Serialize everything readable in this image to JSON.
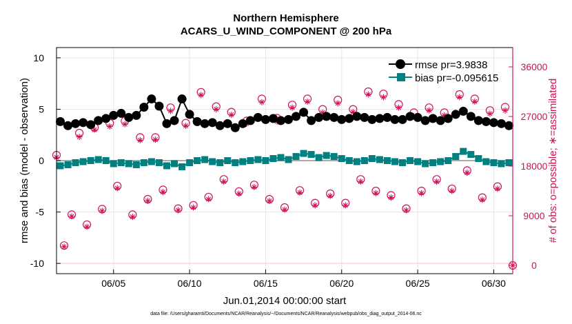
{
  "page": {
    "title_line1": "Northern Hemisphere",
    "title_line2": "ACARS_U_WIND_COMPONENT @ 200 hPa",
    "footer_note": "data file: /Users/gharamti/Documents/NCAR/Reanalysis/~/Documents/NCAR/Reanalysis/webpub/obs_diag_output_2014-06.nc"
  },
  "chart_data": {
    "type": "line",
    "title": "Northern Hemisphere ACARS_U_WIND_COMPONENT @ 200 hPa",
    "xlabel": "Jun.01,2014 00:00:00 start",
    "ylabel_left": "rmse and bias (model - observation)",
    "ylabel_right": "# of obs: o=possible; ∗=assimilated",
    "x_unit": "days since Jun.01,2014 00:00:00",
    "xlim": [
      0.25,
      30.25
    ],
    "ylim_left": [
      -11,
      11
    ],
    "ylim_right": [
      -1500,
      39500
    ],
    "x_ticks": [
      4,
      9,
      14,
      19,
      24,
      29
    ],
    "x_tick_labels": [
      "06/05",
      "06/10",
      "06/15",
      "06/20",
      "06/25",
      "06/30"
    ],
    "y_ticks_left": [
      -10,
      -5,
      0,
      5,
      10
    ],
    "y_ticks_right": [
      0,
      9000,
      18000,
      27000,
      36000
    ],
    "grid": true,
    "legend_placement": "top-right",
    "colors": {
      "rmse": "#000000",
      "bias": "#008080",
      "obs": "#d0105a",
      "zero_line": "#aaaaaa"
    },
    "series": [
      {
        "name": "rmse pr=3.9838",
        "axis": "left",
        "marker": "circle",
        "x": [
          0.5,
          1.0,
          1.5,
          2.0,
          2.5,
          3.0,
          3.5,
          4.0,
          4.5,
          5.0,
          5.5,
          6.0,
          6.5,
          7.0,
          7.5,
          8.0,
          8.5,
          9.0,
          9.5,
          10.0,
          10.5,
          11.0,
          11.5,
          12.0,
          12.5,
          13.0,
          13.5,
          14.0,
          14.5,
          15.0,
          15.5,
          16.0,
          16.5,
          17.0,
          17.5,
          18.0,
          18.5,
          19.0,
          19.5,
          20.0,
          20.5,
          21.0,
          21.5,
          22.0,
          22.5,
          23.0,
          23.5,
          24.0,
          24.5,
          25.0,
          25.5,
          26.0,
          26.5,
          27.0,
          27.5,
          28.0,
          28.5,
          29.0,
          29.5,
          30.0
        ],
        "values": [
          3.8,
          3.4,
          3.6,
          3.7,
          3.5,
          3.9,
          4.1,
          4.4,
          4.6,
          4.2,
          4.4,
          5.2,
          6.0,
          5.3,
          3.6,
          3.9,
          6.0,
          4.5,
          3.8,
          3.6,
          3.7,
          3.4,
          3.6,
          3.2,
          3.6,
          3.9,
          4.2,
          4.0,
          4.1,
          3.9,
          4.0,
          4.3,
          4.7,
          3.9,
          4.2,
          4.3,
          4.2,
          4.0,
          4.1,
          4.3,
          4.2,
          4.0,
          4.1,
          4.2,
          4.0,
          4.0,
          4.3,
          4.2,
          3.9,
          4.1,
          3.9,
          4.1,
          4.5,
          4.8,
          4.3,
          3.9,
          3.8,
          3.7,
          3.6,
          3.4
        ]
      },
      {
        "name": "bias pr=-0.095615",
        "axis": "left",
        "marker": "square",
        "x": [
          0.5,
          1.0,
          1.5,
          2.0,
          2.5,
          3.0,
          3.5,
          4.0,
          4.5,
          5.0,
          5.5,
          6.0,
          6.5,
          7.0,
          7.5,
          8.0,
          8.5,
          9.0,
          9.5,
          10.0,
          10.5,
          11.0,
          11.5,
          12.0,
          12.5,
          13.0,
          13.5,
          14.0,
          14.5,
          15.0,
          15.5,
          16.0,
          16.5,
          17.0,
          17.5,
          18.0,
          18.5,
          19.0,
          19.5,
          20.0,
          20.5,
          21.0,
          21.5,
          22.0,
          22.5,
          23.0,
          23.5,
          24.0,
          24.5,
          25.0,
          25.5,
          26.0,
          26.5,
          27.0,
          27.5,
          28.0,
          28.5,
          29.0,
          29.5,
          30.0
        ],
        "values": [
          -0.5,
          -0.4,
          -0.2,
          -0.1,
          0.0,
          0.1,
          0.0,
          -0.3,
          -0.2,
          -0.3,
          -0.4,
          -0.2,
          -0.1,
          -0.2,
          -0.5,
          -0.3,
          -0.6,
          -0.2,
          0.0,
          0.1,
          -0.1,
          -0.2,
          0.0,
          -0.2,
          -0.1,
          0.0,
          0.1,
          0.0,
          0.2,
          0.3,
          0.1,
          0.4,
          0.7,
          0.6,
          0.3,
          0.5,
          0.4,
          0.2,
          0.0,
          -0.1,
          0.0,
          0.2,
          0.1,
          0.0,
          -0.1,
          -0.2,
          0.0,
          -0.1,
          -0.3,
          -0.2,
          -0.1,
          0.0,
          0.4,
          0.9,
          0.6,
          0.2,
          -0.1,
          -0.2,
          -0.3,
          -0.2
        ]
      },
      {
        "name": "possible",
        "axis": "right",
        "marker": "circle-open",
        "x": [
          0.25,
          0.75,
          1.25,
          1.75,
          2.25,
          2.75,
          3.25,
          3.75,
          4.25,
          4.75,
          5.25,
          5.75,
          6.25,
          6.75,
          7.25,
          7.75,
          8.25,
          8.75,
          9.25,
          9.75,
          10.25,
          10.75,
          11.25,
          11.75,
          12.25,
          12.75,
          13.25,
          13.75,
          14.25,
          14.75,
          15.25,
          15.75,
          16.25,
          16.75,
          17.25,
          17.75,
          18.25,
          18.75,
          19.25,
          19.75,
          20.25,
          20.75,
          21.25,
          21.75,
          22.25,
          22.75,
          23.25,
          23.75,
          24.25,
          24.75,
          25.25,
          25.75,
          26.25,
          26.75,
          27.25,
          27.75,
          28.25,
          28.75,
          29.25,
          29.75,
          30.25
        ],
        "values": [
          20000,
          3600,
          9200,
          24000,
          7400,
          25000,
          10200,
          25800,
          14400,
          26200,
          9200,
          23200,
          12000,
          23200,
          13700,
          28600,
          10300,
          25800,
          10900,
          31400,
          12400,
          28800,
          15600,
          27800,
          13400,
          26200,
          14600,
          30200,
          12000,
          26700,
          10500,
          29100,
          13600,
          30200,
          11300,
          28300,
          13000,
          30000,
          11300,
          28300,
          15600,
          31500,
          13500,
          31100,
          12700,
          29200,
          10300,
          27700,
          13500,
          28600,
          15600,
          27700,
          13900,
          31000,
          17200,
          30200,
          12300,
          28100,
          14300,
          28700,
          0
        ]
      },
      {
        "name": "assimilated",
        "axis": "right",
        "marker": "asterisk",
        "x": [
          0.25,
          0.75,
          1.25,
          1.75,
          2.25,
          2.75,
          3.25,
          3.75,
          4.25,
          4.75,
          5.25,
          5.75,
          6.25,
          6.75,
          7.25,
          7.75,
          8.25,
          8.75,
          9.25,
          9.75,
          10.25,
          10.75,
          11.25,
          11.75,
          12.25,
          12.75,
          13.25,
          13.75,
          14.25,
          14.75,
          15.25,
          15.75,
          16.25,
          16.75,
          17.25,
          17.75,
          18.25,
          18.75,
          19.25,
          19.75,
          20.25,
          20.75,
          21.25,
          21.75,
          22.25,
          22.75,
          23.25,
          23.75,
          24.25,
          24.75,
          25.25,
          25.75,
          26.25,
          26.75,
          27.25,
          27.75,
          28.25,
          28.75,
          29.25,
          29.75,
          30.25
        ],
        "values": [
          19600,
          3400,
          8900,
          23300,
          7000,
          24600,
          9900,
          25200,
          14000,
          25600,
          8800,
          22700,
          11700,
          22800,
          13300,
          28000,
          10000,
          25300,
          10500,
          30900,
          12000,
          28300,
          15200,
          27300,
          13000,
          25700,
          14200,
          29600,
          11700,
          26100,
          10100,
          28600,
          13200,
          29700,
          10900,
          27700,
          12600,
          29400,
          10900,
          27800,
          15200,
          31000,
          13100,
          30500,
          12300,
          28600,
          10000,
          27100,
          13100,
          28100,
          15200,
          27200,
          13500,
          30500,
          16800,
          29700,
          11900,
          27500,
          13900,
          28100,
          0
        ]
      }
    ]
  }
}
